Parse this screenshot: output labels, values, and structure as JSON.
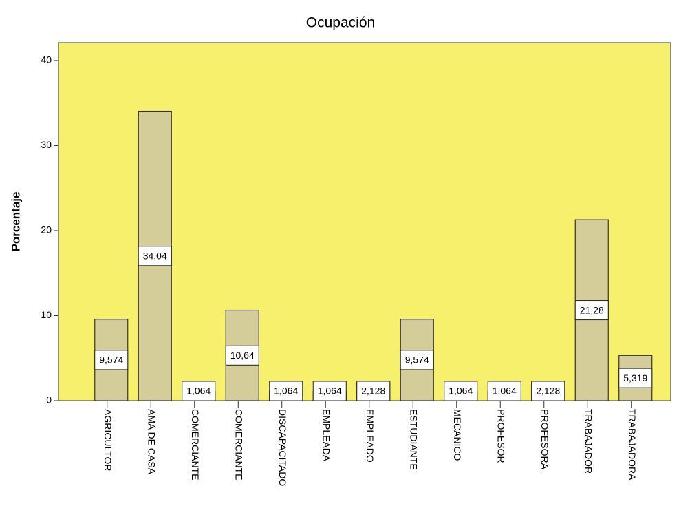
{
  "chart_data": {
    "type": "bar",
    "title": "Ocupación",
    "y_label": "Porcentaje",
    "categories": [
      "AGRICULTOR",
      "AMA DE CASA",
      "COMERCIANTE",
      "COMERCIANTE",
      "DISCAPACITADO",
      "EMPLEADA",
      "EMPLEADO",
      "ESTUDIANTE",
      "MECANICO",
      "PROFESOR",
      "PROFESORA",
      "TRABAJADOR",
      "TRABAJADORA"
    ],
    "values": [
      9.574,
      34.04,
      1.064,
      10.64,
      1.064,
      1.064,
      2.128,
      9.574,
      1.064,
      1.064,
      2.128,
      21.28,
      5.319
    ],
    "value_labels": [
      "9,574",
      "34,04",
      "1,064",
      "10,64",
      "1,064",
      "1,064",
      "2,128",
      "9,574",
      "1,064",
      "1,064",
      "2,128",
      "21,28",
      "5,319"
    ],
    "color": "#d4cd99",
    "background": "#f7f06c",
    "ylim": [
      0,
      42.1
    ],
    "yticks": [
      0,
      10,
      20,
      30,
      40
    ]
  }
}
